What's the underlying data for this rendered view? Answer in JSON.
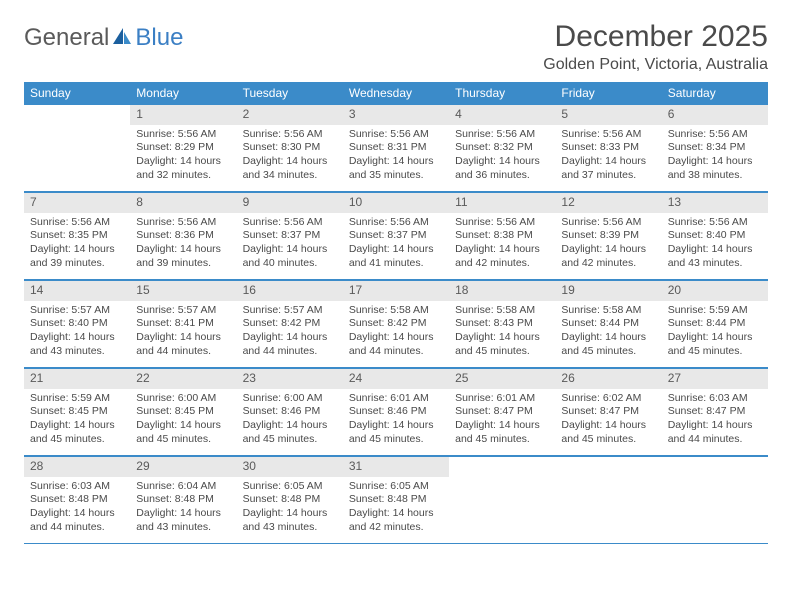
{
  "logo": {
    "general": "General",
    "blue": "Blue"
  },
  "title": "December 2025",
  "location": "Golden Point, Victoria, Australia",
  "colors": {
    "header_bg": "#3b8bc9",
    "header_text": "#ffffff",
    "daynum_bg": "#e8e8e8",
    "border": "#3b8bc9",
    "text": "#4a4a4a",
    "logo_gray": "#5a5a5a",
    "logo_blue": "#3b7fc4"
  },
  "weekdays": [
    "Sunday",
    "Monday",
    "Tuesday",
    "Wednesday",
    "Thursday",
    "Friday",
    "Saturday"
  ],
  "weeks": [
    [
      null,
      {
        "n": "1",
        "sr": "Sunrise: 5:56 AM",
        "ss": "Sunset: 8:29 PM",
        "d1": "Daylight: 14 hours",
        "d2": "and 32 minutes."
      },
      {
        "n": "2",
        "sr": "Sunrise: 5:56 AM",
        "ss": "Sunset: 8:30 PM",
        "d1": "Daylight: 14 hours",
        "d2": "and 34 minutes."
      },
      {
        "n": "3",
        "sr": "Sunrise: 5:56 AM",
        "ss": "Sunset: 8:31 PM",
        "d1": "Daylight: 14 hours",
        "d2": "and 35 minutes."
      },
      {
        "n": "4",
        "sr": "Sunrise: 5:56 AM",
        "ss": "Sunset: 8:32 PM",
        "d1": "Daylight: 14 hours",
        "d2": "and 36 minutes."
      },
      {
        "n": "5",
        "sr": "Sunrise: 5:56 AM",
        "ss": "Sunset: 8:33 PM",
        "d1": "Daylight: 14 hours",
        "d2": "and 37 minutes."
      },
      {
        "n": "6",
        "sr": "Sunrise: 5:56 AM",
        "ss": "Sunset: 8:34 PM",
        "d1": "Daylight: 14 hours",
        "d2": "and 38 minutes."
      }
    ],
    [
      {
        "n": "7",
        "sr": "Sunrise: 5:56 AM",
        "ss": "Sunset: 8:35 PM",
        "d1": "Daylight: 14 hours",
        "d2": "and 39 minutes."
      },
      {
        "n": "8",
        "sr": "Sunrise: 5:56 AM",
        "ss": "Sunset: 8:36 PM",
        "d1": "Daylight: 14 hours",
        "d2": "and 39 minutes."
      },
      {
        "n": "9",
        "sr": "Sunrise: 5:56 AM",
        "ss": "Sunset: 8:37 PM",
        "d1": "Daylight: 14 hours",
        "d2": "and 40 minutes."
      },
      {
        "n": "10",
        "sr": "Sunrise: 5:56 AM",
        "ss": "Sunset: 8:37 PM",
        "d1": "Daylight: 14 hours",
        "d2": "and 41 minutes."
      },
      {
        "n": "11",
        "sr": "Sunrise: 5:56 AM",
        "ss": "Sunset: 8:38 PM",
        "d1": "Daylight: 14 hours",
        "d2": "and 42 minutes."
      },
      {
        "n": "12",
        "sr": "Sunrise: 5:56 AM",
        "ss": "Sunset: 8:39 PM",
        "d1": "Daylight: 14 hours",
        "d2": "and 42 minutes."
      },
      {
        "n": "13",
        "sr": "Sunrise: 5:56 AM",
        "ss": "Sunset: 8:40 PM",
        "d1": "Daylight: 14 hours",
        "d2": "and 43 minutes."
      }
    ],
    [
      {
        "n": "14",
        "sr": "Sunrise: 5:57 AM",
        "ss": "Sunset: 8:40 PM",
        "d1": "Daylight: 14 hours",
        "d2": "and 43 minutes."
      },
      {
        "n": "15",
        "sr": "Sunrise: 5:57 AM",
        "ss": "Sunset: 8:41 PM",
        "d1": "Daylight: 14 hours",
        "d2": "and 44 minutes."
      },
      {
        "n": "16",
        "sr": "Sunrise: 5:57 AM",
        "ss": "Sunset: 8:42 PM",
        "d1": "Daylight: 14 hours",
        "d2": "and 44 minutes."
      },
      {
        "n": "17",
        "sr": "Sunrise: 5:58 AM",
        "ss": "Sunset: 8:42 PM",
        "d1": "Daylight: 14 hours",
        "d2": "and 44 minutes."
      },
      {
        "n": "18",
        "sr": "Sunrise: 5:58 AM",
        "ss": "Sunset: 8:43 PM",
        "d1": "Daylight: 14 hours",
        "d2": "and 45 minutes."
      },
      {
        "n": "19",
        "sr": "Sunrise: 5:58 AM",
        "ss": "Sunset: 8:44 PM",
        "d1": "Daylight: 14 hours",
        "d2": "and 45 minutes."
      },
      {
        "n": "20",
        "sr": "Sunrise: 5:59 AM",
        "ss": "Sunset: 8:44 PM",
        "d1": "Daylight: 14 hours",
        "d2": "and 45 minutes."
      }
    ],
    [
      {
        "n": "21",
        "sr": "Sunrise: 5:59 AM",
        "ss": "Sunset: 8:45 PM",
        "d1": "Daylight: 14 hours",
        "d2": "and 45 minutes."
      },
      {
        "n": "22",
        "sr": "Sunrise: 6:00 AM",
        "ss": "Sunset: 8:45 PM",
        "d1": "Daylight: 14 hours",
        "d2": "and 45 minutes."
      },
      {
        "n": "23",
        "sr": "Sunrise: 6:00 AM",
        "ss": "Sunset: 8:46 PM",
        "d1": "Daylight: 14 hours",
        "d2": "and 45 minutes."
      },
      {
        "n": "24",
        "sr": "Sunrise: 6:01 AM",
        "ss": "Sunset: 8:46 PM",
        "d1": "Daylight: 14 hours",
        "d2": "and 45 minutes."
      },
      {
        "n": "25",
        "sr": "Sunrise: 6:01 AM",
        "ss": "Sunset: 8:47 PM",
        "d1": "Daylight: 14 hours",
        "d2": "and 45 minutes."
      },
      {
        "n": "26",
        "sr": "Sunrise: 6:02 AM",
        "ss": "Sunset: 8:47 PM",
        "d1": "Daylight: 14 hours",
        "d2": "and 45 minutes."
      },
      {
        "n": "27",
        "sr": "Sunrise: 6:03 AM",
        "ss": "Sunset: 8:47 PM",
        "d1": "Daylight: 14 hours",
        "d2": "and 44 minutes."
      }
    ],
    [
      {
        "n": "28",
        "sr": "Sunrise: 6:03 AM",
        "ss": "Sunset: 8:48 PM",
        "d1": "Daylight: 14 hours",
        "d2": "and 44 minutes."
      },
      {
        "n": "29",
        "sr": "Sunrise: 6:04 AM",
        "ss": "Sunset: 8:48 PM",
        "d1": "Daylight: 14 hours",
        "d2": "and 43 minutes."
      },
      {
        "n": "30",
        "sr": "Sunrise: 6:05 AM",
        "ss": "Sunset: 8:48 PM",
        "d1": "Daylight: 14 hours",
        "d2": "and 43 minutes."
      },
      {
        "n": "31",
        "sr": "Sunrise: 6:05 AM",
        "ss": "Sunset: 8:48 PM",
        "d1": "Daylight: 14 hours",
        "d2": "and 42 minutes."
      },
      null,
      null,
      null
    ]
  ]
}
